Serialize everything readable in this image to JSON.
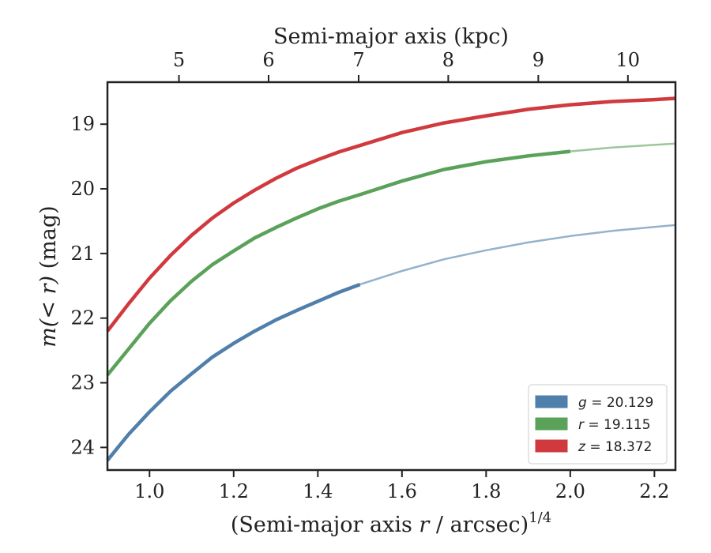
{
  "chart_data": {
    "type": "line",
    "xlabel": "(Semi-major axis r / arcsec)^{1/4}",
    "xlabel_parts": {
      "prefix": "(Semi-major axis ",
      "var": "r",
      "mid": " / arcsec)",
      "sup": "1/4"
    },
    "ylabel": "m(< r) (mag)",
    "ylabel_parts": {
      "math": "m(< r)",
      "unit": " (mag)"
    },
    "top_xlabel": "Semi-major axis (kpc)",
    "xlim": [
      0.9,
      2.25
    ],
    "ylim": [
      24.35,
      18.35
    ],
    "y_inverted": true,
    "x_ticks": [
      1.0,
      1.2,
      1.4,
      1.6,
      1.8,
      2.0,
      2.2
    ],
    "x_tick_labels": [
      "1.0",
      "1.2",
      "1.4",
      "1.6",
      "1.8",
      "2.0",
      "2.2"
    ],
    "y_ticks": [
      19,
      20,
      21,
      22,
      23,
      24
    ],
    "y_tick_labels": [
      "19",
      "20",
      "21",
      "22",
      "23",
      "24"
    ],
    "top_ticks_kpc": [
      5,
      6,
      7,
      8,
      9,
      10
    ],
    "top_tick_labels": [
      "5",
      "6",
      "7",
      "8",
      "9",
      "10"
    ],
    "top_tick_x_positions": [
      1.07,
      1.283,
      1.497,
      1.71,
      1.924,
      2.137
    ],
    "legend_placement": "lower-right",
    "series": [
      {
        "name": "g = 20.129",
        "color": "#4f7faa",
        "measured_until_x": 1.5,
        "x": [
          0.9,
          0.95,
          1.0,
          1.05,
          1.1,
          1.15,
          1.2,
          1.25,
          1.3,
          1.35,
          1.4,
          1.45,
          1.5,
          1.6,
          1.7,
          1.8,
          1.9,
          2.0,
          2.1,
          2.2,
          2.25
        ],
        "y": [
          24.2,
          23.8,
          23.45,
          23.13,
          22.86,
          22.6,
          22.39,
          22.2,
          22.03,
          21.88,
          21.74,
          21.6,
          21.48,
          21.27,
          21.09,
          20.95,
          20.83,
          20.73,
          20.65,
          20.59,
          20.56
        ]
      },
      {
        "name": "r = 19.115",
        "color": "#5aa159",
        "measured_until_x": 2.01,
        "x": [
          0.9,
          0.95,
          1.0,
          1.05,
          1.1,
          1.15,
          1.2,
          1.25,
          1.3,
          1.35,
          1.4,
          1.45,
          1.5,
          1.6,
          1.7,
          1.8,
          1.9,
          2.0,
          2.1,
          2.2,
          2.25
        ],
        "y": [
          22.88,
          22.48,
          22.08,
          21.73,
          21.43,
          21.17,
          20.96,
          20.76,
          20.6,
          20.45,
          20.31,
          20.19,
          20.09,
          19.88,
          19.7,
          19.58,
          19.49,
          19.42,
          19.36,
          19.32,
          19.3
        ]
      },
      {
        "name": "z = 18.372",
        "color": "#d03a3e",
        "measured_until_x": 2.25,
        "x": [
          0.9,
          0.95,
          1.0,
          1.05,
          1.1,
          1.15,
          1.2,
          1.25,
          1.3,
          1.35,
          1.4,
          1.45,
          1.5,
          1.6,
          1.7,
          1.8,
          1.9,
          2.0,
          2.1,
          2.2,
          2.25
        ],
        "y": [
          22.2,
          21.78,
          21.38,
          21.03,
          20.72,
          20.45,
          20.22,
          20.02,
          19.84,
          19.68,
          19.55,
          19.43,
          19.33,
          19.13,
          18.98,
          18.87,
          18.77,
          18.7,
          18.65,
          18.62,
          18.6
        ]
      }
    ],
    "legend": [
      {
        "var": "g",
        "eq": " = 20.129",
        "color": "#4f7faa"
      },
      {
        "var": "r",
        "eq": " = 19.115",
        "color": "#5aa159"
      },
      {
        "var": "z",
        "eq": " = 18.372",
        "color": "#d03a3e"
      }
    ]
  }
}
